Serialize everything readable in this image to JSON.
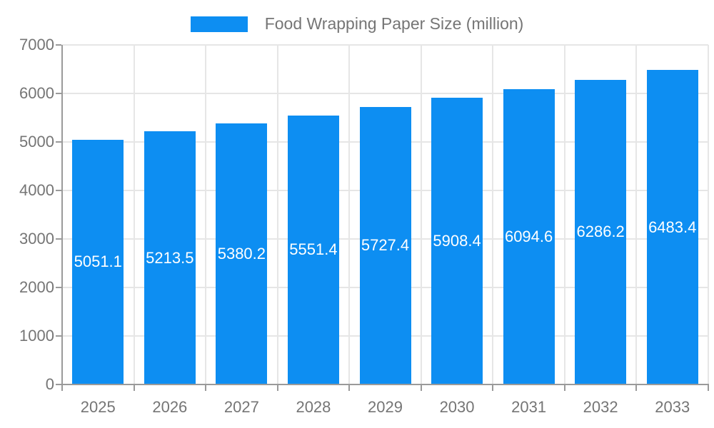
{
  "chart_data": {
    "type": "bar",
    "title": "Food Wrapping Paper Size (million)",
    "categories": [
      "2025",
      "2026",
      "2027",
      "2028",
      "2029",
      "2030",
      "2031",
      "2032",
      "2033"
    ],
    "series": [
      {
        "name": "Food Wrapping Paper Size (million)",
        "values": [
          5051.1,
          5213.5,
          5380.2,
          5551.4,
          5727.4,
          5908.4,
          6094.6,
          6286.2,
          6483.4
        ]
      }
    ],
    "data_labels": [
      "5051.1",
      "5213.5",
      "5380.2",
      "5551.4",
      "5727.4",
      "5908.4",
      "6094.6",
      "6286.2",
      "6483.4"
    ],
    "xlabel": "",
    "ylabel": "",
    "ylim": [
      0,
      7000
    ],
    "y_ticks": [
      0,
      1000,
      2000,
      3000,
      4000,
      5000,
      6000,
      7000
    ],
    "grid": true,
    "legend_position": "top",
    "colors": {
      "bar": "#0d8ef2",
      "data_label": "#ffffff",
      "axis_text": "#757575",
      "grid_line": "#e6e6e6",
      "axis_line": "#9a9a9a"
    }
  }
}
